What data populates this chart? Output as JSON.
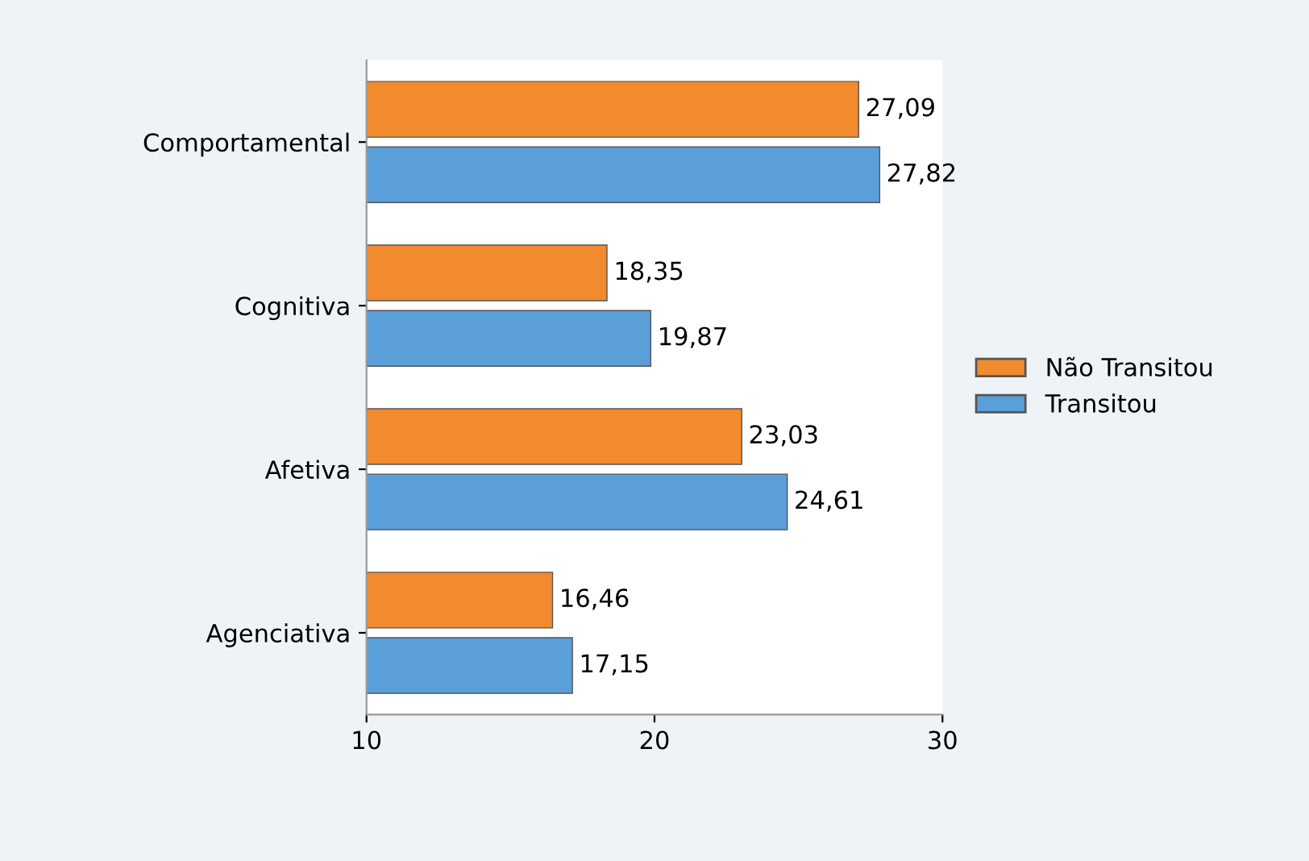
{
  "chart_data": {
    "type": "bar",
    "orientation": "horizontal",
    "categories": [
      "Comportamental",
      "Cognitiva",
      "Afetiva",
      "Agenciativa"
    ],
    "series": [
      {
        "name": "Não Transitou",
        "color": "#f28a2e",
        "values": [
          27.09,
          18.35,
          23.03,
          16.46
        ],
        "value_labels": [
          "27,09",
          "18,35",
          "23,03",
          "16,46"
        ]
      },
      {
        "name": "Transitou",
        "color": "#5a9fd8",
        "values": [
          27.82,
          19.87,
          24.61,
          17.15
        ],
        "value_labels": [
          "27,82",
          "19,87",
          "24,61",
          "17,15"
        ]
      }
    ],
    "xlim": [
      10,
      30
    ],
    "xticks": [
      10,
      20,
      30
    ],
    "grid": false,
    "legend": "right"
  }
}
